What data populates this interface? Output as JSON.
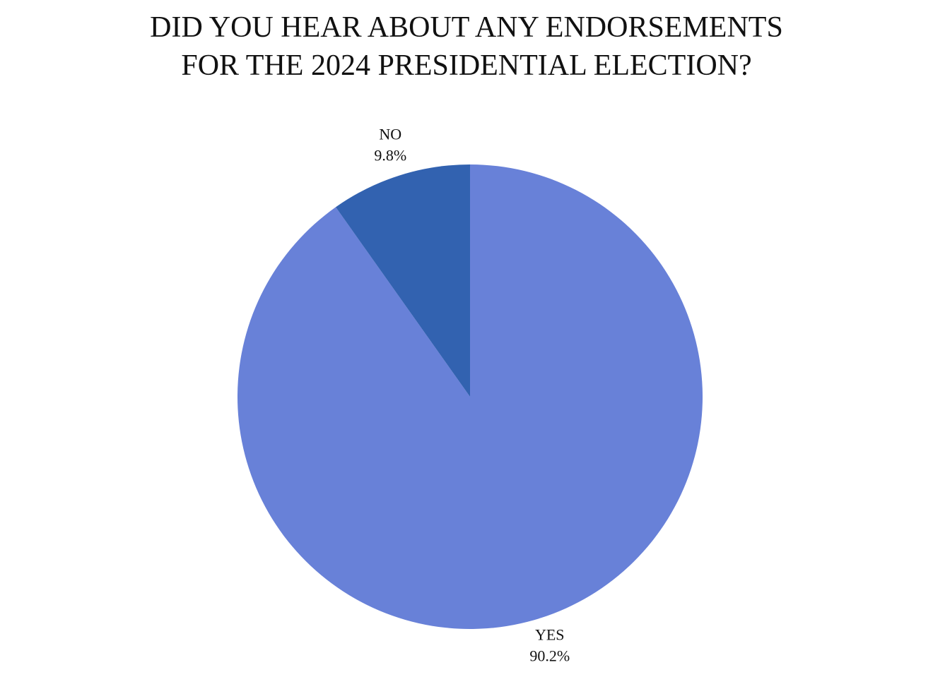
{
  "chart_data": {
    "type": "pie",
    "title": "DID YOU HEAR ABOUT ANY ENDORSEMENTS FOR THE 2024 PRESIDENTIAL ELECTION?",
    "categories": [
      "YES",
      "NO"
    ],
    "values": [
      90.2,
      9.8
    ],
    "value_labels": [
      "90.2%",
      "9.8%"
    ],
    "colors": [
      "#6881d8",
      "#3262b0"
    ]
  }
}
